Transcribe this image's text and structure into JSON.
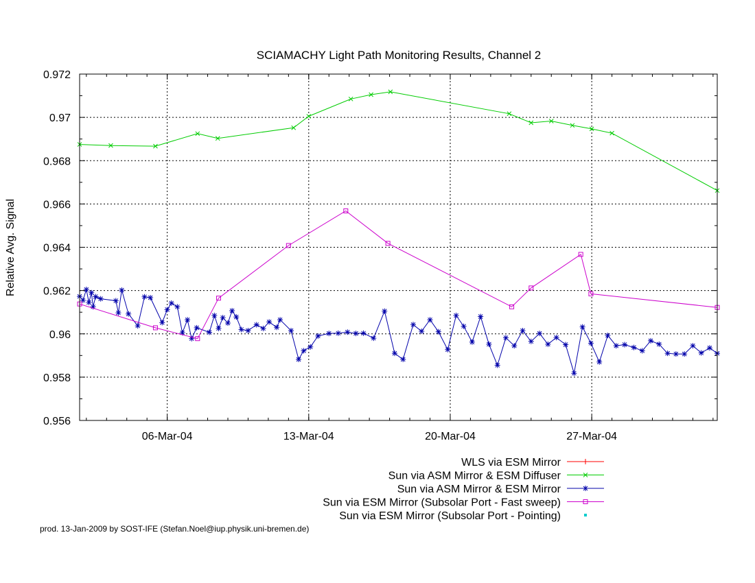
{
  "chart_data": {
    "type": "line",
    "title": "SCIAMACHY Light Path Monitoring Results, Channel 2",
    "xlabel": "",
    "ylabel": "Relative Avg. Signal",
    "xlim": [
      "2004-03-01T16:00",
      "2004-04-02T05:00"
    ],
    "ylim": [
      0.956,
      0.972
    ],
    "y_ticks": [
      0.956,
      0.958,
      0.96,
      0.962,
      0.964,
      0.966,
      0.968,
      0.97,
      0.972
    ],
    "y_tick_labels": [
      "0.956",
      "0.958",
      "0.96",
      "0.962",
      "0.964",
      "0.966",
      "0.968",
      "0.97",
      "0.972"
    ],
    "x_ticks": [
      "2004-03-06",
      "2004-03-13",
      "2004-03-20",
      "2004-03-27"
    ],
    "x_tick_labels": [
      "06-Mar-04",
      "13-Mar-04",
      "20-Mar-04",
      "27-Mar-04"
    ],
    "grid": true,
    "legend_position": "bottom-right, below plot",
    "series": [
      {
        "name": "WLS via ESM Mirror",
        "color": "#ff0000",
        "marker": "plus",
        "points": []
      },
      {
        "name": "Sun via ASM Mirror & ESM Diffuser",
        "color": "#00cc00",
        "marker": "x",
        "points": [
          [
            "2004-03-01T16:00",
            0.96875
          ],
          [
            "2004-03-03T05:00",
            0.9687
          ],
          [
            "2004-03-05T10:00",
            0.96867
          ],
          [
            "2004-03-07T12:00",
            0.96925
          ],
          [
            "2004-03-08T12:00",
            0.96903
          ],
          [
            "2004-03-12T06:00",
            0.96952
          ],
          [
            "2004-03-13T00:00",
            0.97005
          ],
          [
            "2004-03-15T02:00",
            0.97085
          ],
          [
            "2004-03-16T02:00",
            0.97105
          ],
          [
            "2004-03-17T01:00",
            0.97118
          ],
          [
            "2004-03-22T22:00",
            0.97017
          ],
          [
            "2004-03-24T00:00",
            0.96975
          ],
          [
            "2004-03-25T00:00",
            0.96983
          ],
          [
            "2004-03-26T01:00",
            0.96963
          ],
          [
            "2004-03-27T00:00",
            0.96947
          ],
          [
            "2004-03-28T00:00",
            0.96927
          ],
          [
            "2004-04-02T05:00",
            0.96662
          ]
        ]
      },
      {
        "name": "Sun via ASM Mirror & ESM Mirror",
        "color": "#0000aa",
        "marker": "star",
        "points": [
          [
            "2004-03-01T16:00",
            0.96173
          ],
          [
            "2004-03-01T20:00",
            0.96155
          ],
          [
            "2004-03-02T00:00",
            0.96205
          ],
          [
            "2004-03-02T03:00",
            0.96145
          ],
          [
            "2004-03-02T06:00",
            0.9619
          ],
          [
            "2004-03-02T08:00",
            0.96125
          ],
          [
            "2004-03-02T11:00",
            0.96172
          ],
          [
            "2004-03-02T17:00",
            0.96162
          ],
          [
            "2004-03-03T11:00",
            0.96153
          ],
          [
            "2004-03-03T14:00",
            0.96097
          ],
          [
            "2004-03-03T18:00",
            0.96202
          ],
          [
            "2004-03-04T02:00",
            0.96092
          ],
          [
            "2004-03-04T13:00",
            0.96037
          ],
          [
            "2004-03-04T21:00",
            0.96171
          ],
          [
            "2004-03-05T04:00",
            0.96167
          ],
          [
            "2004-03-05T18:00",
            0.96052
          ],
          [
            "2004-03-06T00:00",
            0.96112
          ],
          [
            "2004-03-06T05:00",
            0.96142
          ],
          [
            "2004-03-06T12:00",
            0.96125
          ],
          [
            "2004-03-06T18:00",
            0.96005
          ],
          [
            "2004-03-07T00:00",
            0.96065
          ],
          [
            "2004-03-07T05:00",
            0.95978
          ],
          [
            "2004-03-07T11:00",
            0.96028
          ],
          [
            "2004-03-08T02:00",
            0.96007
          ],
          [
            "2004-03-08T08:00",
            0.96085
          ],
          [
            "2004-03-08T13:00",
            0.96025
          ],
          [
            "2004-03-08T18:00",
            0.96075
          ],
          [
            "2004-03-09T00:00",
            0.9605
          ],
          [
            "2004-03-09T05:00",
            0.96107
          ],
          [
            "2004-03-09T10:00",
            0.96078
          ],
          [
            "2004-03-09T16:00",
            0.9602
          ],
          [
            "2004-03-10T00:00",
            0.96015
          ],
          [
            "2004-03-10T10:00",
            0.96042
          ],
          [
            "2004-03-10T18:00",
            0.96025
          ],
          [
            "2004-03-11T01:00",
            0.96055
          ],
          [
            "2004-03-11T10:00",
            0.9603
          ],
          [
            "2004-03-11T14:00",
            0.96065
          ],
          [
            "2004-03-12T03:00",
            0.96015
          ],
          [
            "2004-03-12T12:00",
            0.95882
          ],
          [
            "2004-03-12T18:00",
            0.95922
          ],
          [
            "2004-03-13T02:00",
            0.9594
          ],
          [
            "2004-03-13T11:00",
            0.9599
          ],
          [
            "2004-03-14T00:00",
            0.96002
          ],
          [
            "2004-03-14T11:00",
            0.96003
          ],
          [
            "2004-03-14T22:00",
            0.96008
          ],
          [
            "2004-03-15T08:00",
            0.96002
          ],
          [
            "2004-03-15T17:00",
            0.96003
          ],
          [
            "2004-03-16T05:00",
            0.9598
          ],
          [
            "2004-03-16T18:00",
            0.96105
          ],
          [
            "2004-03-17T06:00",
            0.9591
          ],
          [
            "2004-03-17T16:00",
            0.95882
          ],
          [
            "2004-03-18T04:00",
            0.96043
          ],
          [
            "2004-03-18T14:00",
            0.96012
          ],
          [
            "2004-03-19T00:00",
            0.96065
          ],
          [
            "2004-03-19T10:00",
            0.9601
          ],
          [
            "2004-03-19T21:00",
            0.95927
          ],
          [
            "2004-03-20T07:00",
            0.96085
          ],
          [
            "2004-03-20T16:00",
            0.96035
          ],
          [
            "2004-03-21T02:00",
            0.95962
          ],
          [
            "2004-03-21T12:00",
            0.9608
          ],
          [
            "2004-03-21T22:00",
            0.95952
          ],
          [
            "2004-03-22T08:00",
            0.95855
          ],
          [
            "2004-03-22T18:00",
            0.95982
          ],
          [
            "2004-03-23T04:00",
            0.95945
          ],
          [
            "2004-03-23T14:00",
            0.96015
          ],
          [
            "2004-03-24T00:00",
            0.95965
          ],
          [
            "2004-03-24T10:00",
            0.96002
          ],
          [
            "2004-03-24T20:00",
            0.95952
          ],
          [
            "2004-03-25T06:00",
            0.95983
          ],
          [
            "2004-03-25T17:00",
            0.9595
          ],
          [
            "2004-03-26T03:00",
            0.95818
          ],
          [
            "2004-03-26T13:00",
            0.96032
          ],
          [
            "2004-03-26T23:00",
            0.95957
          ],
          [
            "2004-03-27T09:00",
            0.9587
          ],
          [
            "2004-03-27T19:00",
            0.95993
          ],
          [
            "2004-03-28T05:00",
            0.95945
          ],
          [
            "2004-03-28T15:00",
            0.9595
          ],
          [
            "2004-03-29T02:00",
            0.95937
          ],
          [
            "2004-03-29T12:00",
            0.95922
          ],
          [
            "2004-03-29T22:00",
            0.95968
          ],
          [
            "2004-03-30T08:00",
            0.95952
          ],
          [
            "2004-03-30T18:00",
            0.9591
          ],
          [
            "2004-03-31T04:00",
            0.95907
          ],
          [
            "2004-03-31T14:00",
            0.95907
          ],
          [
            "2004-04-01T00:00",
            0.95945
          ],
          [
            "2004-04-01T10:00",
            0.95912
          ],
          [
            "2004-04-01T20:00",
            0.95935
          ],
          [
            "2004-04-02T05:00",
            0.9591
          ]
        ]
      },
      {
        "name": "Sun via ESM Mirror (Subsolar Port - Fast sweep)",
        "color": "#cc00cc",
        "marker": "square",
        "points": [
          [
            "2004-03-01T16:00",
            0.96138
          ],
          [
            "2004-03-05T10:00",
            0.96028
          ],
          [
            "2004-03-07T12:00",
            0.95978
          ],
          [
            "2004-03-08T13:00",
            0.96165
          ],
          [
            "2004-03-12T00:00",
            0.96408
          ],
          [
            "2004-03-14T20:00",
            0.96568
          ],
          [
            "2004-03-16T22:00",
            0.96418
          ],
          [
            "2004-03-23T01:00",
            0.96125
          ],
          [
            "2004-03-24T00:00",
            0.96212
          ],
          [
            "2004-03-26T11:00",
            0.96367
          ],
          [
            "2004-03-26T23:00",
            0.96185
          ],
          [
            "2004-04-02T05:00",
            0.96122
          ]
        ]
      },
      {
        "name": "Sun via ESM Mirror (Subsolar Port - Pointing)",
        "color": "#00cccc",
        "marker": "dot",
        "points": []
      }
    ],
    "footer_text": "prod. 13-Jan-2009 by SOST-IFE (Stefan.Noel@iup.physik.uni-bremen.de)"
  }
}
